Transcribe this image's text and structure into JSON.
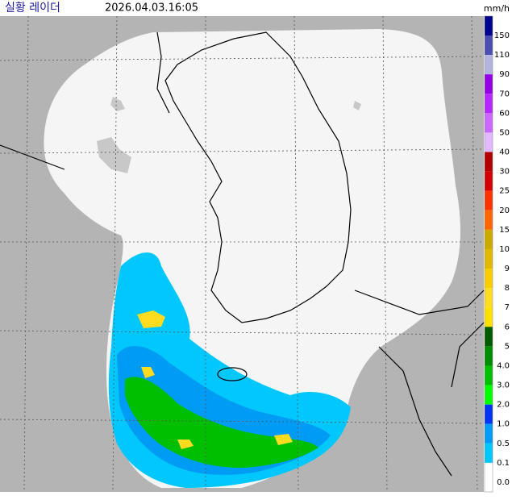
{
  "header": {
    "title": "실황 레이더",
    "timestamp": "2026.04.03.16:05"
  },
  "legend": {
    "unit": "mm/h",
    "overflow_color": "#333333",
    "items": [
      {
        "label": "150",
        "color": "#000390"
      },
      {
        "label": "110",
        "color": "#4c4eb1"
      },
      {
        "label": "90",
        "color": "#b3b4de"
      },
      {
        "label": "70",
        "color": "#9300e4"
      },
      {
        "label": "60",
        "color": "#b329ff"
      },
      {
        "label": "50",
        "color": "#c969ff"
      },
      {
        "label": "40",
        "color": "#e0b9ff"
      },
      {
        "label": "30",
        "color": "#b40000"
      },
      {
        "label": "25",
        "color": "#d20000"
      },
      {
        "label": "20",
        "color": "#ff3200"
      },
      {
        "label": "15",
        "color": "#ff6600"
      },
      {
        "label": "10",
        "color": "#ccaa00"
      },
      {
        "label": "9",
        "color": "#e0b900"
      },
      {
        "label": "8",
        "color": "#f9cd00"
      },
      {
        "label": "7",
        "color": "#ffdc1f"
      },
      {
        "label": "6",
        "color": "#ffe100"
      },
      {
        "label": "5",
        "color": "#005a00"
      },
      {
        "label": "4.0",
        "color": "#008c00"
      },
      {
        "label": "3.0",
        "color": "#00be00"
      },
      {
        "label": "2.0",
        "color": "#00ff00"
      },
      {
        "label": "1.0",
        "color": "#0033f5"
      },
      {
        "label": "0.5",
        "color": "#009bf5"
      },
      {
        "label": "0.1",
        "color": "#00c8ff"
      },
      {
        "label": "0.0",
        "color": "#ffffff"
      }
    ]
  }
}
